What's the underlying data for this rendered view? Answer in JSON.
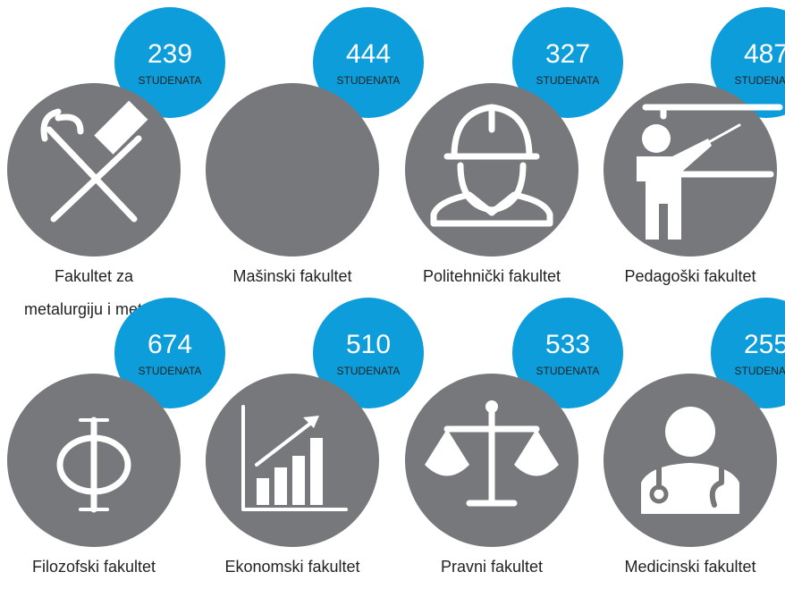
{
  "faculties": [
    {
      "count": 239,
      "unit": "STUDENATA",
      "name": [
        "Fakultet za",
        "metalurgiju i metale"
      ]
    },
    {
      "count": 444,
      "unit": "STUDENATA",
      "name": [
        "Mašinski fakultet"
      ]
    },
    {
      "count": 327,
      "unit": "STUDENATA",
      "name": [
        "Politehnički fakultet"
      ]
    },
    {
      "count": 487,
      "unit": "STUDENATA",
      "name": [
        "Pedagoški fakultet"
      ]
    },
    {
      "count": 674,
      "unit": "STUDENATA",
      "name": [
        "Filozofski fakultet"
      ]
    },
    {
      "count": 510,
      "unit": "STUDENATA",
      "name": [
        "Ekonomski fakultet"
      ]
    },
    {
      "count": 533,
      "unit": "STUDENATA",
      "name": [
        "Pravni fakultet"
      ]
    },
    {
      "count": 255,
      "unit": "STUDENATA",
      "name": [
        "Medicinski fakultet"
      ]
    }
  ]
}
